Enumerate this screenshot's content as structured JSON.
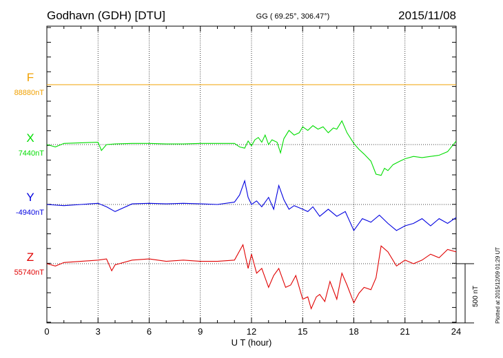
{
  "header": {
    "station": "Godhavn (GDH)  [DTU]",
    "coords": "GG ( 69.25°, 306.47°)",
    "date": "2015/11/08"
  },
  "footer": {
    "plotted": "Plotted at 2015/12/09 01:29 UT",
    "scale_label": "500 nT"
  },
  "chart_data": {
    "type": "line",
    "xlabel": "U T (hour)",
    "xlim": [
      0,
      24
    ],
    "x_ticks": [
      0,
      3,
      6,
      9,
      12,
      15,
      18,
      21,
      24
    ],
    "scale_bar_nT": 500,
    "grid": "dotted vertical every 3 h + dotted baseline per component",
    "series": [
      {
        "name": "F",
        "baseline_label": "88880nT",
        "color": "#f0a000",
        "x": [
          0,
          24
        ],
        "y": [
          0,
          0
        ]
      },
      {
        "name": "X",
        "baseline_label": "7440nT",
        "color": "#00dd00",
        "x": [
          0,
          0.5,
          1,
          2,
          3,
          3.2,
          3.5,
          4,
          5,
          6,
          7,
          8,
          9,
          10,
          11,
          11.3,
          11.6,
          11.8,
          12,
          12.2,
          12.4,
          12.6,
          12.8,
          13,
          13.2,
          13.5,
          13.7,
          13.9,
          14.2,
          14.5,
          14.8,
          15,
          15.3,
          15.6,
          15.9,
          16.2,
          16.5,
          16.8,
          17,
          17.3,
          17.6,
          18,
          18.3,
          18.6,
          19,
          19.3,
          19.6,
          19.8,
          20,
          20.3,
          20.7,
          21,
          21.5,
          22,
          22.5,
          23,
          23.5,
          24
        ],
        "y": [
          0,
          -20,
          10,
          15,
          20,
          -50,
          0,
          5,
          10,
          10,
          5,
          5,
          10,
          10,
          10,
          -20,
          -30,
          30,
          -10,
          40,
          60,
          20,
          80,
          0,
          40,
          20,
          -70,
          50,
          120,
          80,
          100,
          150,
          120,
          160,
          130,
          150,
          100,
          140,
          130,
          200,
          100,
          10,
          -40,
          -80,
          -140,
          -250,
          -260,
          -200,
          -220,
          -170,
          -140,
          -120,
          -100,
          -110,
          -100,
          -90,
          -60,
          30
        ]
      },
      {
        "name": "Y",
        "baseline_label": "-4940nT",
        "color": "#0000e0",
        "x": [
          0,
          1,
          2,
          3,
          3.5,
          4,
          5,
          6,
          7,
          8,
          9,
          10,
          11,
          11.3,
          11.6,
          11.8,
          12,
          12.3,
          12.6,
          13,
          13.3,
          13.6,
          13.9,
          14.2,
          14.5,
          15,
          15.3,
          15.6,
          16,
          16.5,
          17,
          17.5,
          18,
          18.5,
          19,
          19.5,
          20,
          20.5,
          21,
          21.5,
          22,
          22.5,
          23,
          23.5,
          24
        ],
        "y": [
          0,
          -10,
          0,
          10,
          -20,
          -60,
          5,
          10,
          5,
          10,
          5,
          0,
          20,
          80,
          200,
          60,
          0,
          30,
          -20,
          60,
          -40,
          160,
          40,
          -40,
          -10,
          -40,
          -60,
          -20,
          -100,
          -40,
          -100,
          -60,
          -220,
          -120,
          -150,
          -90,
          -160,
          -220,
          -180,
          -160,
          -120,
          -180,
          -120,
          -160,
          -110
        ]
      },
      {
        "name": "Z",
        "baseline_label": "55740nT",
        "color": "#e00000",
        "x": [
          0,
          0.5,
          1,
          2,
          3,
          3.5,
          3.8,
          4,
          5,
          6,
          7,
          8,
          9,
          10,
          11,
          11.5,
          11.8,
          12,
          12.3,
          12.6,
          13,
          13.3,
          13.6,
          14,
          14.3,
          14.6,
          15,
          15.3,
          15.5,
          15.8,
          16,
          16.3,
          16.6,
          17,
          17.3,
          17.6,
          18,
          18.3,
          18.6,
          19,
          19.3,
          19.6,
          20,
          20.5,
          21,
          21.5,
          22,
          22.5,
          23,
          23.5,
          24
        ],
        "y": [
          0,
          -20,
          10,
          20,
          30,
          40,
          -60,
          -10,
          30,
          40,
          20,
          30,
          20,
          20,
          30,
          160,
          -40,
          80,
          -80,
          -40,
          -200,
          -100,
          -40,
          -200,
          -180,
          -100,
          -300,
          -280,
          -380,
          -280,
          -260,
          -320,
          -150,
          -300,
          -80,
          -180,
          -330,
          -250,
          -200,
          -220,
          -120,
          150,
          100,
          -20,
          30,
          0,
          30,
          80,
          50,
          120,
          100
        ]
      }
    ]
  }
}
